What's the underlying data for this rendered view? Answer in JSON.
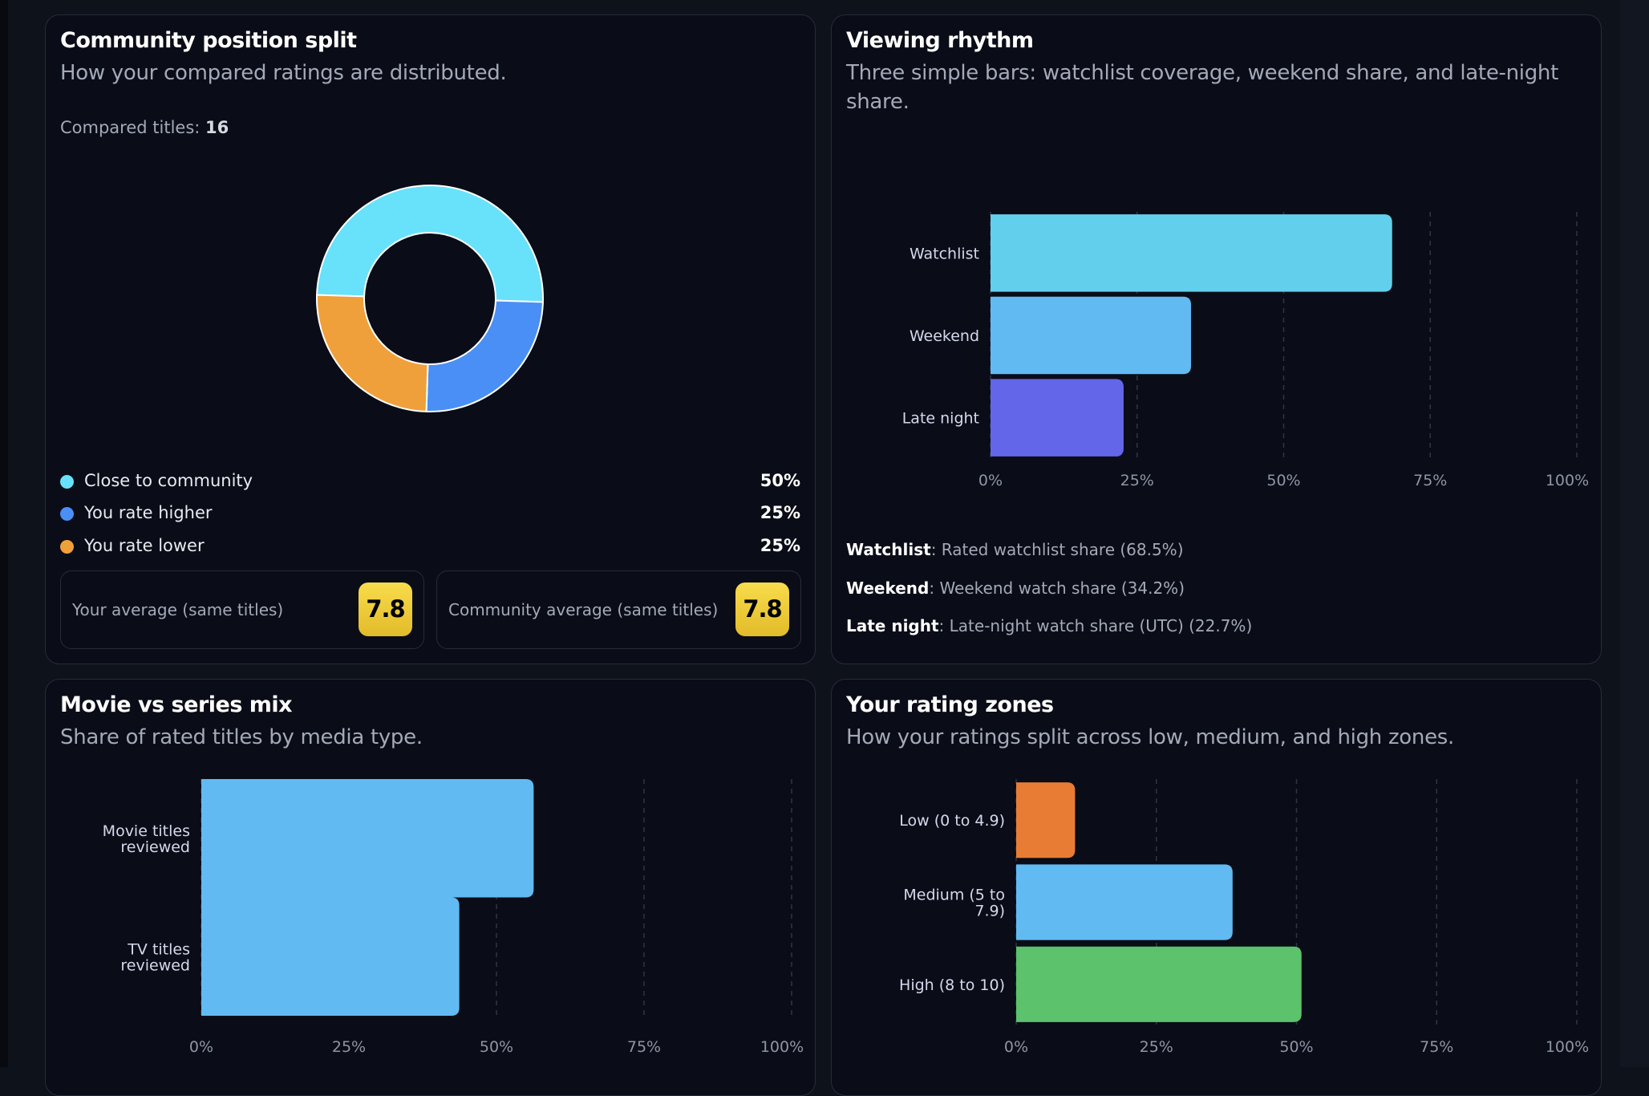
{
  "community": {
    "title": "Community position split",
    "subtitle": "How your compared ratings are distributed.",
    "compared_label": "Compared titles:",
    "compared_value": "16",
    "legend": [
      {
        "label": "Close to community",
        "pct": "50%",
        "color": "#68e1fb"
      },
      {
        "label": "You rate higher",
        "pct": "25%",
        "color": "#4a8ff5"
      },
      {
        "label": "You rate lower",
        "pct": "25%",
        "color": "#f0a03a"
      }
    ],
    "your_avg_label": "Your average (same titles)",
    "your_avg_value": "7.8",
    "community_avg_label": "Community average (same titles)",
    "community_avg_value": "7.8"
  },
  "rhythm": {
    "title": "Viewing rhythm",
    "subtitle": "Three simple bars: watchlist coverage, weekend share, and late-night share.",
    "descriptions": [
      {
        "term": "Watchlist",
        "text": ": Rated watchlist share (68.5%)"
      },
      {
        "term": "Weekend",
        "text": ": Weekend watch share (34.2%)"
      },
      {
        "term": "Late night",
        "text": ": Late-night watch share (UTC) (22.7%)"
      }
    ]
  },
  "mix": {
    "title": "Movie vs series mix",
    "subtitle": "Share of rated titles by media type."
  },
  "zones": {
    "title": "Your rating zones",
    "subtitle": "How your ratings split across low, medium, and high zones."
  },
  "chart_data": [
    {
      "id": "community",
      "type": "pie",
      "donut": true,
      "categories": [
        "Close to community",
        "You rate higher",
        "You rate lower"
      ],
      "values": [
        50,
        25,
        25
      ],
      "colors": [
        "#68e1fb",
        "#4a8ff5",
        "#f0a03a"
      ]
    },
    {
      "id": "rhythm",
      "type": "bar",
      "orientation": "horizontal",
      "categories": [
        "Watchlist",
        "Weekend",
        "Late night"
      ],
      "values": [
        68.5,
        34.2,
        22.7
      ],
      "colors": [
        "#62d0ec",
        "#62baf2",
        "#6366e8"
      ],
      "xlim": [
        0,
        100
      ],
      "xticks": [
        "0%",
        "25%",
        "50%",
        "75%",
        "100%"
      ],
      "grid": true
    },
    {
      "id": "mix",
      "type": "bar",
      "orientation": "horizontal",
      "categories": [
        [
          "Movie titles",
          "reviewed"
        ],
        [
          "TV titles",
          "reviewed"
        ]
      ],
      "values": [
        56.3,
        43.7
      ],
      "colors": [
        "#62baf2",
        "#62baf2"
      ],
      "xlim": [
        0,
        100
      ],
      "xticks": [
        "0%",
        "25%",
        "50%",
        "75%",
        "100%"
      ],
      "grid": true
    },
    {
      "id": "zones",
      "type": "bar",
      "orientation": "horizontal",
      "categories": [
        [
          "Low (0 to 4.9)"
        ],
        [
          "Medium (5 to",
          "7.9)"
        ],
        [
          "High (8 to 10)"
        ]
      ],
      "values": [
        10.5,
        38.6,
        50.9
      ],
      "colors": [
        "#e97c34",
        "#62baf2",
        "#5cc26b"
      ],
      "xlim": [
        0,
        100
      ],
      "xticks": [
        "0%",
        "25%",
        "50%",
        "75%",
        "100%"
      ],
      "grid": true
    }
  ]
}
